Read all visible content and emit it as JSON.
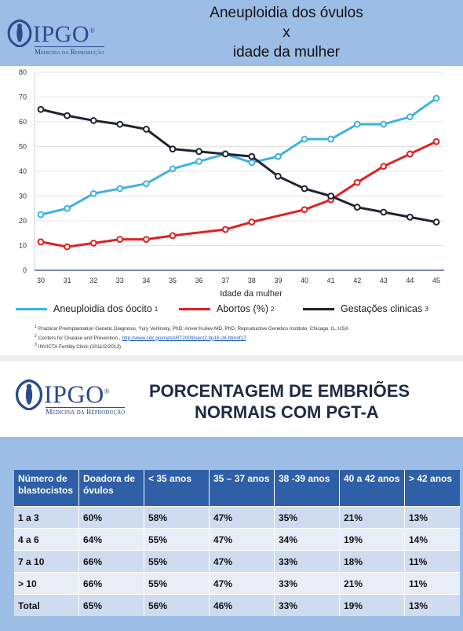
{
  "logo": {
    "word": "IPGO",
    "reg": "®",
    "sub": "Medicina da Reprodução"
  },
  "chart_title": {
    "line1": "Aneuploidia dos óvulos",
    "line2": "x",
    "line3": "idade da mulher"
  },
  "chart_data": {
    "type": "line",
    "x": [
      30,
      31,
      32,
      33,
      34,
      35,
      36,
      37,
      38,
      39,
      40,
      41,
      42,
      43,
      44,
      45
    ],
    "xlabel": "Idade da mulher",
    "ylabel": "",
    "xlim": [
      30,
      45
    ],
    "ylim": [
      0,
      80
    ],
    "yticks": [
      0,
      10,
      20,
      30,
      40,
      50,
      60,
      70,
      80
    ],
    "grid": true,
    "legend": "bottom",
    "series": [
      {
        "name": "Aneuploidia dos óocito",
        "sup": "1",
        "color": "#3fb3de",
        "values": [
          22.5,
          25,
          31,
          33,
          35,
          41,
          44,
          47,
          43.5,
          46,
          53,
          53,
          59,
          59,
          62,
          69.5
        ]
      },
      {
        "name": "Abortos (%)",
        "sup": "2",
        "color": "#e02020",
        "values": [
          11.5,
          9.5,
          11,
          12.5,
          12.5,
          14,
          null,
          16.5,
          19.5,
          null,
          24.5,
          28.5,
          35.5,
          42,
          47,
          52
        ]
      },
      {
        "name": "Gestações clinicas",
        "sup": "3",
        "color": "#1e2430",
        "values": [
          65,
          62.5,
          60.5,
          59,
          57,
          49,
          48,
          47,
          46,
          38,
          33,
          30,
          25.5,
          23.5,
          21.5,
          19.5
        ]
      }
    ]
  },
  "references": [
    {
      "num": "1",
      "text": "Practical Preimplantation Genetic Diagnosis, Yury Verlinsky, PhD; Anver Kuliev MD, PhD, Reproductive Genetics Institute, Chicago, IL, USA"
    },
    {
      "num": "2",
      "text": "Centers for Disease and Prevention , ",
      "link": "http://www.cdc.gov/art/ART2009/sect2-fig16-26.htm#f17"
    },
    {
      "num": "3",
      "text": "INVICTA Fertility Clinic (2011/2/2013)"
    }
  ],
  "table_title": {
    "line1": "PORCENTAGEM DE EMBRIÕES",
    "line2": "NORMAIS COM PGT-A"
  },
  "table": {
    "headers": [
      "Número de blastocistos",
      "Doadora de óvulos",
      "< 35 anos",
      "35 – 37 anos",
      "38 -39 anos",
      "40 a 42 anos",
      "> 42 anos"
    ],
    "rows": [
      [
        "1 a 3",
        "60%",
        "58%",
        "47%",
        "35%",
        "21%",
        "13%"
      ],
      [
        "4 a 6",
        "64%",
        "55%",
        "47%",
        "34%",
        "19%",
        "14%"
      ],
      [
        "7 a 10",
        "66%",
        "55%",
        "47%",
        "33%",
        "18%",
        "11%"
      ],
      [
        "> 10",
        "66%",
        "55%",
        "47%",
        "33%",
        "21%",
        "11%"
      ],
      [
        "Total",
        "65%",
        "56%",
        "46%",
        "33%",
        "19%",
        "13%"
      ]
    ]
  }
}
